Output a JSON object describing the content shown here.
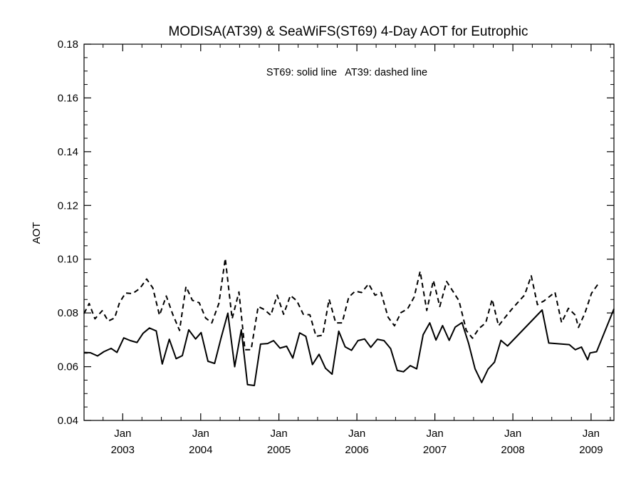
{
  "chart_data": {
    "type": "line",
    "title": "MODISA(AT39) & SeaWiFS(ST69) 4-Day AOT for Eutrophic",
    "annotation": "ST69: solid line   AT39: dashed line",
    "xlabel": "",
    "ylabel": "AOT",
    "ylim": [
      0.04,
      0.18
    ],
    "yticks": [
      "0.04",
      "0.06",
      "0.08",
      "0.10",
      "0.12",
      "0.14",
      "0.16",
      "0.18"
    ],
    "xlim": [
      "2002-07-04",
      "2009-04-18"
    ],
    "xticks": [
      {
        "month": "Jan",
        "year": "2003",
        "date": "2003-01-01"
      },
      {
        "month": "Jan",
        "year": "2004",
        "date": "2004-01-01"
      },
      {
        "month": "Jan",
        "year": "2005",
        "date": "2005-01-01"
      },
      {
        "month": "Jan",
        "year": "2006",
        "date": "2006-01-01"
      },
      {
        "month": "Jan",
        "year": "2007",
        "date": "2007-01-01"
      },
      {
        "month": "Jan",
        "year": "2008",
        "date": "2008-01-01"
      },
      {
        "month": "Jan",
        "year": "2009",
        "date": "2009-01-01"
      }
    ],
    "grid": false,
    "series": [
      {
        "name": "ST69",
        "style": "solid",
        "color": "#000000",
        "points": [
          [
            "2002-07-04",
            0.0653
          ],
          [
            "2002-08-03",
            0.0652
          ],
          [
            "2002-09-05",
            0.064
          ],
          [
            "2002-10-05",
            0.0656
          ],
          [
            "2002-11-08",
            0.0668
          ],
          [
            "2002-12-05",
            0.0653
          ],
          [
            "2003-01-06",
            0.0707
          ],
          [
            "2003-02-06",
            0.0697
          ],
          [
            "2003-03-09",
            0.069
          ],
          [
            "2003-04-06",
            0.0724
          ],
          [
            "2003-05-06",
            0.0744
          ],
          [
            "2003-06-07",
            0.0733
          ],
          [
            "2003-07-05",
            0.061
          ],
          [
            "2003-08-07",
            0.0702
          ],
          [
            "2003-09-08",
            0.063
          ],
          [
            "2003-10-07",
            0.0641
          ],
          [
            "2003-11-06",
            0.0737
          ],
          [
            "2003-12-08",
            0.0703
          ],
          [
            "2004-01-03",
            0.0727
          ],
          [
            "2004-02-04",
            0.062
          ],
          [
            "2004-03-06",
            0.0612
          ],
          [
            "2004-04-05",
            0.0706
          ],
          [
            "2004-05-07",
            0.0799
          ],
          [
            "2004-06-08",
            0.06
          ],
          [
            "2004-07-09",
            0.0737
          ],
          [
            "2004-08-07",
            0.0533
          ],
          [
            "2004-09-08",
            0.053
          ],
          [
            "2004-10-07",
            0.0684
          ],
          [
            "2004-11-09",
            0.0686
          ],
          [
            "2004-12-07",
            0.0697
          ],
          [
            "2005-01-06",
            0.0669
          ],
          [
            "2005-02-06",
            0.0676
          ],
          [
            "2005-03-07",
            0.0632
          ],
          [
            "2005-04-08",
            0.0726
          ],
          [
            "2005-05-07",
            0.0713
          ],
          [
            "2005-06-07",
            0.0608
          ],
          [
            "2005-07-08",
            0.0646
          ],
          [
            "2005-08-07",
            0.0594
          ],
          [
            "2005-09-07",
            0.0572
          ],
          [
            "2005-10-08",
            0.0732
          ],
          [
            "2005-11-07",
            0.0674
          ],
          [
            "2005-12-07",
            0.0661
          ],
          [
            "2006-01-06",
            0.0697
          ],
          [
            "2006-02-06",
            0.0703
          ],
          [
            "2006-03-07",
            0.0672
          ],
          [
            "2006-04-07",
            0.0702
          ],
          [
            "2006-05-08",
            0.0697
          ],
          [
            "2006-06-08",
            0.0667
          ],
          [
            "2006-07-09",
            0.0586
          ],
          [
            "2006-08-07",
            0.0581
          ],
          [
            "2006-09-08",
            0.0604
          ],
          [
            "2006-10-08",
            0.0592
          ],
          [
            "2006-11-07",
            0.0719
          ],
          [
            "2006-12-08",
            0.0763
          ],
          [
            "2007-01-06",
            0.0699
          ],
          [
            "2007-02-06",
            0.0753
          ],
          [
            "2007-03-09",
            0.0698
          ],
          [
            "2007-04-06",
            0.0747
          ],
          [
            "2007-05-08",
            0.0764
          ],
          [
            "2007-06-08",
            0.0686
          ],
          [
            "2007-07-08",
            0.0592
          ],
          [
            "2007-08-08",
            0.0541
          ],
          [
            "2007-09-07",
            0.0591
          ],
          [
            "2007-10-07",
            0.0617
          ],
          [
            "2007-11-06",
            0.0698
          ],
          [
            "2007-12-07",
            0.0677
          ],
          [
            "2008-05-17",
            0.0811
          ],
          [
            "2008-06-17",
            0.0688
          ],
          [
            "2008-09-21",
            0.0682
          ],
          [
            "2008-10-19",
            0.0663
          ],
          [
            "2008-11-17",
            0.0673
          ],
          [
            "2008-12-16",
            0.0626
          ],
          [
            "2008-12-27",
            0.0651
          ],
          [
            "2009-01-27",
            0.0656
          ],
          [
            "2009-04-18",
            0.0815
          ]
        ]
      },
      {
        "name": "AT39",
        "style": "dashed",
        "color": "#000000",
        "points": [
          [
            "2002-07-04",
            0.0798
          ],
          [
            "2002-07-28",
            0.0835
          ],
          [
            "2002-08-24",
            0.0778
          ],
          [
            "2002-09-27",
            0.0808
          ],
          [
            "2002-10-25",
            0.077
          ],
          [
            "2002-11-24",
            0.0781
          ],
          [
            "2002-12-17",
            0.0838
          ],
          [
            "2003-01-14",
            0.0874
          ],
          [
            "2003-02-16",
            0.0872
          ],
          [
            "2003-03-22",
            0.0891
          ],
          [
            "2003-04-23",
            0.0926
          ],
          [
            "2003-05-22",
            0.0893
          ],
          [
            "2003-06-22",
            0.0791
          ],
          [
            "2003-07-24",
            0.0863
          ],
          [
            "2003-08-23",
            0.0795
          ],
          [
            "2003-09-24",
            0.0735
          ],
          [
            "2003-10-24",
            0.0898
          ],
          [
            "2003-11-23",
            0.0847
          ],
          [
            "2003-12-25",
            0.0838
          ],
          [
            "2004-01-24",
            0.0781
          ],
          [
            "2004-02-22",
            0.0763
          ],
          [
            "2004-03-26",
            0.0835
          ],
          [
            "2004-04-25",
            0.1003
          ],
          [
            "2004-05-27",
            0.0778
          ],
          [
            "2004-06-28",
            0.0878
          ],
          [
            "2004-07-26",
            0.0663
          ],
          [
            "2004-08-24",
            0.0663
          ],
          [
            "2004-09-26",
            0.0824
          ],
          [
            "2004-10-26",
            0.0812
          ],
          [
            "2004-11-24",
            0.0791
          ],
          [
            "2004-12-24",
            0.0866
          ],
          [
            "2005-01-23",
            0.0795
          ],
          [
            "2005-02-24",
            0.0865
          ],
          [
            "2005-03-26",
            0.0845
          ],
          [
            "2005-04-25",
            0.0795
          ],
          [
            "2005-05-26",
            0.0793
          ],
          [
            "2005-06-24",
            0.0713
          ],
          [
            "2005-07-25",
            0.0717
          ],
          [
            "2005-08-24",
            0.0851
          ],
          [
            "2005-09-24",
            0.0763
          ],
          [
            "2005-10-24",
            0.0763
          ],
          [
            "2005-11-24",
            0.0859
          ],
          [
            "2005-12-24",
            0.0881
          ],
          [
            "2006-01-23",
            0.0876
          ],
          [
            "2006-02-25",
            0.0908
          ],
          [
            "2006-03-27",
            0.0866
          ],
          [
            "2006-04-24",
            0.0876
          ],
          [
            "2006-05-27",
            0.0784
          ],
          [
            "2006-06-26",
            0.0752
          ],
          [
            "2006-07-26",
            0.0801
          ],
          [
            "2006-08-26",
            0.0815
          ],
          [
            "2006-09-26",
            0.0859
          ],
          [
            "2006-10-24",
            0.0955
          ],
          [
            "2006-11-24",
            0.0809
          ],
          [
            "2006-12-25",
            0.0921
          ],
          [
            "2007-01-24",
            0.0824
          ],
          [
            "2007-02-25",
            0.0917
          ],
          [
            "2007-03-26",
            0.0881
          ],
          [
            "2007-04-24",
            0.0845
          ],
          [
            "2007-05-28",
            0.0735
          ],
          [
            "2007-06-26",
            0.0706
          ],
          [
            "2007-07-26",
            0.0742
          ],
          [
            "2007-08-27",
            0.0763
          ],
          [
            "2007-09-26",
            0.0851
          ],
          [
            "2007-10-26",
            0.0752
          ],
          [
            "2007-11-26",
            0.0784
          ],
          [
            "2007-12-25",
            0.0812
          ],
          [
            "2008-01-23",
            0.0838
          ],
          [
            "2008-02-25",
            0.0867
          ],
          [
            "2008-03-27",
            0.0938
          ],
          [
            "2008-04-25",
            0.0831
          ],
          [
            "2008-05-26",
            0.0845
          ],
          [
            "2008-07-16",
            0.0877
          ],
          [
            "2008-08-16",
            0.0764
          ],
          [
            "2008-09-17",
            0.0817
          ],
          [
            "2008-10-19",
            0.0792
          ],
          [
            "2008-11-03",
            0.0746
          ],
          [
            "2008-12-03",
            0.0799
          ],
          [
            "2009-01-03",
            0.0873
          ],
          [
            "2009-02-07",
            0.0912
          ]
        ]
      }
    ]
  }
}
